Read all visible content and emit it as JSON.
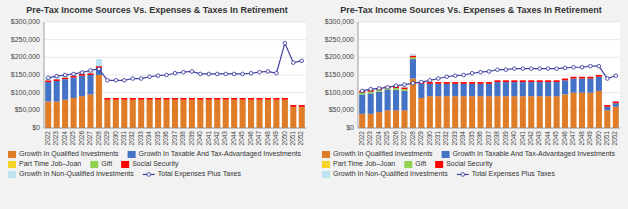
{
  "chart_data": [
    {
      "type": "bar",
      "stacked": true,
      "grid": true,
      "legend": "bottom",
      "title": "Pre-Tax Income Sources Vs. Expenses & Taxes In Retirement",
      "categories": [
        2022,
        2023,
        2024,
        2025,
        2026,
        2027,
        2028,
        2029,
        2030,
        2031,
        2032,
        2033,
        2034,
        2035,
        2036,
        2037,
        2038,
        2039,
        2040,
        2041,
        2042,
        2043,
        2044,
        2045,
        2046,
        2047,
        2048,
        2049,
        2050,
        2051,
        2052
      ],
      "ylim": [
        0,
        300000
      ],
      "yticks": [
        {
          "value": 0,
          "label": "$0"
        },
        {
          "value": 50000,
          "label": "$50,000"
        },
        {
          "value": 100000,
          "label": "$100,000"
        },
        {
          "value": 150000,
          "label": "$150,000"
        },
        {
          "value": 200000,
          "label": "$200,000"
        },
        {
          "value": 250000,
          "label": "$250,000"
        },
        {
          "value": 300000,
          "label": "$300,000"
        }
      ],
      "series": [
        {
          "name": "Growth In Qualified Investments",
          "type": "bar",
          "color": "#e07b27",
          "values": [
            75000,
            75000,
            80000,
            85000,
            90000,
            95000,
            150000,
            80000,
            80000,
            80000,
            80000,
            80000,
            80000,
            80000,
            80000,
            80000,
            80000,
            80000,
            80000,
            80000,
            80000,
            80000,
            80000,
            80000,
            80000,
            80000,
            80000,
            80000,
            80000,
            60000,
            60000
          ]
        },
        {
          "name": "Growth In Taxable And Tax-Advantaged Investments",
          "type": "bar",
          "color": "#4472c4",
          "values": [
            55000,
            58000,
            58000,
            58000,
            58000,
            55000,
            20000,
            0,
            0,
            0,
            0,
            0,
            0,
            0,
            0,
            0,
            0,
            0,
            0,
            0,
            0,
            0,
            0,
            0,
            0,
            0,
            0,
            0,
            0,
            0,
            0
          ]
        },
        {
          "name": "Part Time Job–Joan",
          "type": "bar",
          "color": "#f5d327",
          "values": [
            0,
            0,
            0,
            0,
            0,
            0,
            0,
            0,
            0,
            0,
            0,
            0,
            0,
            0,
            0,
            0,
            0,
            0,
            0,
            0,
            0,
            0,
            0,
            0,
            0,
            0,
            0,
            0,
            0,
            0,
            0
          ]
        },
        {
          "name": "Gift",
          "type": "bar",
          "color": "#92d050",
          "values": [
            0,
            0,
            0,
            0,
            0,
            0,
            0,
            0,
            0,
            0,
            0,
            0,
            0,
            0,
            0,
            0,
            0,
            0,
            0,
            0,
            0,
            0,
            0,
            0,
            0,
            0,
            0,
            0,
            0,
            0,
            0
          ]
        },
        {
          "name": "Social Security",
          "type": "bar",
          "color": "#ff0000",
          "values": [
            5000,
            5000,
            5000,
            5000,
            5000,
            5000,
            5000,
            5000,
            5000,
            5000,
            5000,
            5000,
            5000,
            5000,
            5000,
            5000,
            5000,
            5000,
            5000,
            5000,
            5000,
            5000,
            5000,
            5000,
            5000,
            5000,
            5000,
            5000,
            5000,
            5000,
            5000
          ]
        },
        {
          "name": "Growth In Non-Qualified Investments",
          "type": "bar",
          "color": "#bde3f0",
          "values": [
            8000,
            8000,
            8000,
            8000,
            8000,
            8000,
            20000,
            0,
            0,
            0,
            0,
            0,
            0,
            0,
            0,
            0,
            0,
            0,
            0,
            0,
            0,
            0,
            0,
            0,
            0,
            0,
            0,
            0,
            0,
            0,
            0
          ]
        },
        {
          "name": "Total Expenses Plus Taxes",
          "type": "line",
          "marker": "circle",
          "color": "#4040a0",
          "values": [
            142000,
            147000,
            150000,
            153000,
            157000,
            163000,
            167000,
            135000,
            135000,
            135000,
            140000,
            140000,
            145000,
            148000,
            150000,
            155000,
            158000,
            160000,
            153000,
            153000,
            153000,
            153000,
            153000,
            153000,
            155000,
            158000,
            160000,
            155000,
            240000,
            185000,
            190000
          ]
        }
      ]
    },
    {
      "type": "bar",
      "stacked": true,
      "grid": true,
      "legend": "bottom",
      "title": "Pre-Tax Income Sources Vs. Expenses & Taxes In Retirement",
      "categories": [
        2022,
        2023,
        2024,
        2025,
        2026,
        2027,
        2028,
        2029,
        2030,
        2031,
        2032,
        2033,
        2034,
        2035,
        2036,
        2037,
        2038,
        2039,
        2040,
        2041,
        2042,
        2043,
        2044,
        2045,
        2046,
        2047,
        2048,
        2049,
        2050,
        2051,
        2052
      ],
      "ylim": [
        0,
        300000
      ],
      "yticks": [
        {
          "value": 0,
          "label": "$0"
        },
        {
          "value": 50000,
          "label": "$50,000"
        },
        {
          "value": 100000,
          "label": "$100,000"
        },
        {
          "value": 150000,
          "label": "$150,000"
        },
        {
          "value": 200000,
          "label": "$200,000"
        },
        {
          "value": 250000,
          "label": "$250,000"
        },
        {
          "value": 300000,
          "label": "$300,000"
        }
      ],
      "series": [
        {
          "name": "Growth In Qualified Investments",
          "type": "bar",
          "color": "#e07b27",
          "values": [
            40000,
            40000,
            45000,
            50000,
            50000,
            50000,
            140000,
            85000,
            90000,
            90000,
            90000,
            90000,
            90000,
            90000,
            90000,
            90000,
            90000,
            90000,
            90000,
            90000,
            90000,
            90000,
            90000,
            90000,
            95000,
            100000,
            100000,
            100000,
            105000,
            50000,
            60000
          ]
        },
        {
          "name": "Growth In Taxable And Tax-Advantaged Investments",
          "type": "bar",
          "color": "#4472c4",
          "values": [
            55000,
            58000,
            58000,
            58000,
            58000,
            55000,
            55000,
            40000,
            35000,
            35000,
            35000,
            35000,
            35000,
            35000,
            35000,
            35000,
            40000,
            40000,
            40000,
            40000,
            40000,
            40000,
            40000,
            40000,
            40000,
            40000,
            40000,
            40000,
            40000,
            10000,
            10000
          ]
        },
        {
          "name": "Part Time Job–Joan",
          "type": "bar",
          "color": "#f5d327",
          "values": [
            0,
            0,
            0,
            0,
            0,
            0,
            0,
            0,
            0,
            0,
            0,
            0,
            0,
            0,
            0,
            0,
            0,
            0,
            0,
            0,
            0,
            0,
            0,
            0,
            0,
            0,
            0,
            0,
            0,
            0,
            0
          ]
        },
        {
          "name": "Gift",
          "type": "bar",
          "color": "#92d050",
          "values": [
            5000,
            5000,
            5000,
            5000,
            5000,
            5000,
            5000,
            0,
            0,
            0,
            0,
            0,
            0,
            0,
            0,
            0,
            0,
            0,
            0,
            0,
            0,
            0,
            0,
            0,
            0,
            0,
            0,
            0,
            0,
            0,
            0
          ]
        },
        {
          "name": "Social Security",
          "type": "bar",
          "color": "#ff0000",
          "values": [
            5000,
            5000,
            5000,
            5000,
            5000,
            5000,
            5000,
            5000,
            5000,
            5000,
            5000,
            5000,
            5000,
            5000,
            5000,
            5000,
            5000,
            5000,
            5000,
            5000,
            5000,
            5000,
            5000,
            5000,
            5000,
            5000,
            5000,
            5000,
            5000,
            5000,
            5000
          ]
        },
        {
          "name": "Growth In Non-Qualified Investments",
          "type": "bar",
          "color": "#bde3f0",
          "values": [
            0,
            0,
            0,
            0,
            0,
            5000,
            5000,
            0,
            0,
            0,
            0,
            0,
            0,
            0,
            0,
            0,
            0,
            0,
            0,
            0,
            0,
            0,
            0,
            0,
            0,
            0,
            0,
            0,
            0,
            0,
            0
          ]
        },
        {
          "name": "Total Expenses Plus Taxes",
          "type": "line",
          "marker": "circle",
          "color": "#4040a0",
          "values": [
            105000,
            110000,
            112000,
            115000,
            120000,
            123000,
            127000,
            130000,
            135000,
            140000,
            145000,
            148000,
            150000,
            155000,
            158000,
            160000,
            165000,
            165000,
            168000,
            168000,
            168000,
            168000,
            168000,
            168000,
            170000,
            172000,
            172000,
            175000,
            175000,
            140000,
            148000
          ]
        }
      ]
    }
  ]
}
